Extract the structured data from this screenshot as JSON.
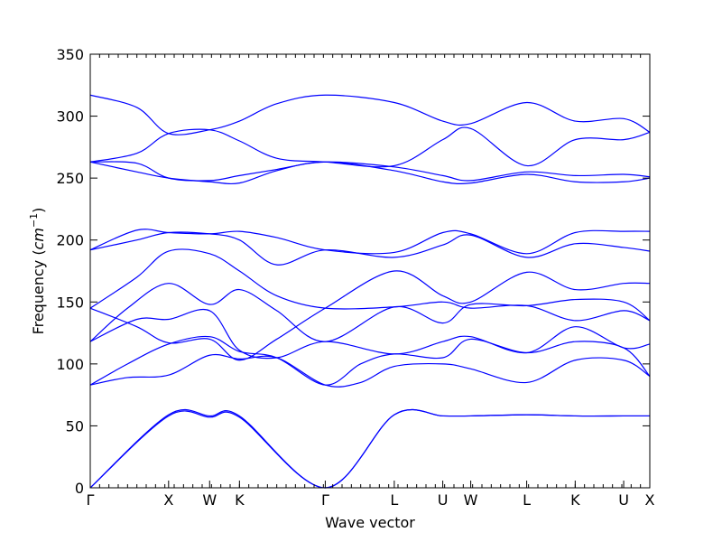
{
  "chart_data": {
    "type": "line",
    "xlabel": "Wave vector",
    "ylabel": "Frequency ($cm^{-1}$)",
    "ylabel_text": "Frequency (",
    "ylabel_unit_base": "cm",
    "ylabel_unit_exp": "−1",
    "ylabel_close": ")",
    "ylim": [
      0,
      350
    ],
    "y_ticks": [
      0,
      50,
      100,
      150,
      200,
      250,
      300,
      350
    ],
    "x_range": [
      0,
      30
    ],
    "grid": false,
    "line_color": "#0000ff",
    "high_symmetry_points": [
      {
        "label": "Γ",
        "x": 0
      },
      {
        "label": "X",
        "x": 4.2
      },
      {
        "label": "W",
        "x": 6.4
      },
      {
        "label": "K",
        "x": 8.0
      },
      {
        "label": "Γ",
        "x": 12.6
      },
      {
        "label": "L",
        "x": 16.3
      },
      {
        "label": "U",
        "x": 18.9
      },
      {
        "label": "W",
        "x": 20.4
      },
      {
        "label": "L",
        "x": 23.4
      },
      {
        "label": "K",
        "x": 26.0
      },
      {
        "label": "U",
        "x": 28.6
      },
      {
        "label": "X",
        "x": 30.0
      }
    ],
    "series": [
      {
        "x": [
          0,
          4.2,
          6.4,
          8.0,
          12.6,
          16.3,
          18.9,
          20.4,
          23.4,
          26.0,
          28.6,
          30.0
        ],
        "values": [
          0,
          58,
          57,
          57,
          0,
          59,
          58,
          58,
          59,
          58,
          58,
          58
        ]
      },
      {
        "x": [
          0,
          4.2,
          6.4,
          8.0,
          12.6,
          16.3,
          18.9,
          20.4,
          23.4,
          26.0,
          28.6,
          30.0
        ],
        "values": [
          0,
          59,
          58,
          58,
          0,
          59,
          58,
          58,
          59,
          58,
          58,
          58
        ]
      },
      {
        "x": [
          0,
          2.0,
          4.2,
          6.4,
          8.0,
          10.0,
          12.6,
          14.5,
          16.3,
          18.9,
          20.4,
          23.4,
          26.0,
          28.6,
          30.0
        ],
        "values": [
          83,
          89,
          91,
          107,
          104,
          105,
          83,
          85,
          98,
          100,
          96,
          85,
          103,
          103,
          90
        ]
      },
      {
        "x": [
          0,
          2.0,
          4.2,
          6.4,
          8.0,
          10.0,
          12.6,
          14.5,
          16.3,
          18.9,
          20.4,
          23.4,
          26.0,
          28.6,
          30.0
        ],
        "values": [
          83,
          100,
          116,
          122,
          110,
          105,
          83,
          100,
          108,
          105,
          120,
          109,
          118,
          113,
          90
        ]
      },
      {
        "x": [
          0,
          2.5,
          4.2,
          6.4,
          8.0,
          10.0,
          12.6,
          16.3,
          18.9,
          20.4,
          23.4,
          26.0,
          28.6,
          30.0
        ],
        "values": [
          118,
          136,
          136,
          143,
          111,
          105,
          118,
          108,
          118,
          122,
          109,
          130,
          113,
          116
        ]
      },
      {
        "x": [
          0,
          2.0,
          4.2,
          6.4,
          8.0,
          10.0,
          12.6,
          16.3,
          18.9,
          20.4,
          23.4,
          26.0,
          28.6,
          30.0
        ],
        "values": [
          118,
          145,
          165,
          148,
          160,
          143,
          118,
          146,
          133,
          148,
          147,
          152,
          150,
          135
        ]
      },
      {
        "x": [
          0,
          2.5,
          4.2,
          6.4,
          8.0,
          10.0,
          12.6,
          16.3,
          18.9,
          20.4,
          23.4,
          26.0,
          28.6,
          30.0
        ],
        "values": [
          145,
          170,
          191,
          189,
          175,
          155,
          145,
          146,
          150,
          145,
          147,
          135,
          143,
          135
        ]
      },
      {
        "x": [
          0,
          2.5,
          4.2,
          6.4,
          8.0,
          10.0,
          12.6,
          16.3,
          18.9,
          20.4,
          23.4,
          26.0,
          28.6,
          30.0
        ],
        "values": [
          145,
          130,
          117,
          120,
          103,
          120,
          145,
          175,
          155,
          150,
          174,
          160,
          165,
          165
        ]
      },
      {
        "x": [
          0,
          2.5,
          4.2,
          6.4,
          8.0,
          10.0,
          12.6,
          16.3,
          18.9,
          20.4,
          23.4,
          26.0,
          28.6,
          30.0
        ],
        "values": [
          192,
          200,
          206,
          205,
          200,
          180,
          192,
          186,
          196,
          204,
          186,
          197,
          194,
          191
        ]
      },
      {
        "x": [
          0,
          2.5,
          4.2,
          6.4,
          8.0,
          10.0,
          12.6,
          16.3,
          18.9,
          20.4,
          23.4,
          26.0,
          28.6,
          30.0
        ],
        "values": [
          192,
          208,
          206,
          205,
          207,
          202,
          192,
          190,
          206,
          205,
          189,
          206,
          207,
          207
        ]
      },
      {
        "x": [
          0,
          2.5,
          4.2,
          6.4,
          8.0,
          10.0,
          12.6,
          16.3,
          18.9,
          20.4,
          23.4,
          26.0,
          28.6,
          30.0
        ],
        "values": [
          263,
          255,
          250,
          247,
          246,
          256,
          263,
          256,
          247,
          246,
          253,
          247,
          247,
          250
        ]
      },
      {
        "x": [
          0,
          2.5,
          4.2,
          6.4,
          8.0,
          10.0,
          12.6,
          16.3,
          18.9,
          20.4,
          23.4,
          26.0,
          28.6,
          30.0
        ],
        "values": [
          263,
          262,
          250,
          248,
          252,
          257,
          263,
          259,
          252,
          248,
          255,
          252,
          253,
          251
        ]
      },
      {
        "x": [
          0,
          2.5,
          4.2,
          6.4,
          8.0,
          10.0,
          12.6,
          16.3,
          18.9,
          20.4,
          23.4,
          26.0,
          28.6,
          30.0
        ],
        "values": [
          263,
          270,
          286,
          289,
          280,
          266,
          263,
          260,
          281,
          290,
          260,
          281,
          281,
          287
        ]
      },
      {
        "x": [
          0,
          2.5,
          4.2,
          6.4,
          8.0,
          10.0,
          12.6,
          16.3,
          18.9,
          20.4,
          23.4,
          26.0,
          28.6,
          30.0
        ],
        "values": [
          317,
          307,
          286,
          289,
          296,
          310,
          317,
          311,
          296,
          294,
          311,
          296,
          298,
          287
        ]
      }
    ]
  }
}
